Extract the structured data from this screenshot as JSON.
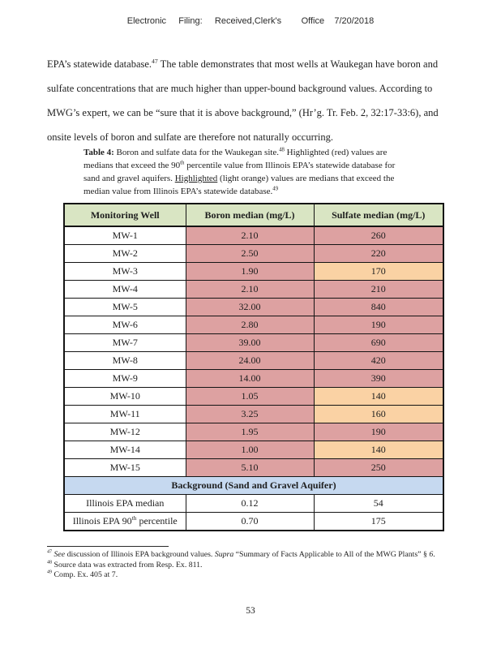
{
  "header": {
    "line": "Electronic     Filing:     Received,Clerk's        Office    7/20/2018"
  },
  "paragraph": {
    "segments": [
      {
        "t": "EPA’s statewide database."
      },
      {
        "t": "47",
        "style": "sup"
      },
      {
        "t": " The table demonstrates that most wells at Waukegan have boron and sulfate concentrations that are much higher than upper-bound background values. According to MWG’s expert, we can be “sure that it is above background,” (Hr’g. Tr. Feb. 2, 32:17-33:6), and onsite levels of boron and sulfate are therefore not naturally occurring."
      }
    ]
  },
  "caption": {
    "segments": [
      {
        "t": "Table 4:",
        "style": "bold"
      },
      {
        "t": " Boron and sulfate data for the Waukegan site."
      },
      {
        "t": "48",
        "style": "sup"
      },
      {
        "t": " Highlighted (red) values are medians that exceed the 90"
      },
      {
        "t": "th",
        "style": "sup"
      },
      {
        "t": " percentile value from Illinois EPA’s statewide database for sand and gravel aquifers. "
      },
      {
        "t": "Highlighted",
        "style": "underline"
      },
      {
        "t": " (light orange) values are medians that exceed the median value from Illinois EPA’s statewide database."
      },
      {
        "t": "49",
        "style": "sup"
      }
    ]
  },
  "table": {
    "columns": [
      "Monitoring Well",
      "Boron median (mg/L)",
      "Sulfate median (mg/L)"
    ],
    "header_bg": "#d9e5c3",
    "section_bg": "#c6d9f0",
    "highlight_colors": {
      "red": "#dda1a1",
      "orange": "#fad2a4",
      "none": "#ffffff"
    },
    "rows": [
      {
        "well": "MW-1",
        "boron": "2.10",
        "boron_hl": "red",
        "sulfate": "260",
        "sulfate_hl": "red"
      },
      {
        "well": "MW-2",
        "boron": "2.50",
        "boron_hl": "red",
        "sulfate": "220",
        "sulfate_hl": "red"
      },
      {
        "well": "MW-3",
        "boron": "1.90",
        "boron_hl": "red",
        "sulfate": "170",
        "sulfate_hl": "orange"
      },
      {
        "well": "MW-4",
        "boron": "2.10",
        "boron_hl": "red",
        "sulfate": "210",
        "sulfate_hl": "red"
      },
      {
        "well": "MW-5",
        "boron": "32.00",
        "boron_hl": "red",
        "sulfate": "840",
        "sulfate_hl": "red"
      },
      {
        "well": "MW-6",
        "boron": "2.80",
        "boron_hl": "red",
        "sulfate": "190",
        "sulfate_hl": "red"
      },
      {
        "well": "MW-7",
        "boron": "39.00",
        "boron_hl": "red",
        "sulfate": "690",
        "sulfate_hl": "red"
      },
      {
        "well": "MW-8",
        "boron": "24.00",
        "boron_hl": "red",
        "sulfate": "420",
        "sulfate_hl": "red"
      },
      {
        "well": "MW-9",
        "boron": "14.00",
        "boron_hl": "red",
        "sulfate": "390",
        "sulfate_hl": "red"
      },
      {
        "well": "MW-10",
        "boron": "1.05",
        "boron_hl": "red",
        "sulfate": "140",
        "sulfate_hl": "orange"
      },
      {
        "well": "MW-11",
        "boron": "3.25",
        "boron_hl": "red",
        "sulfate": "160",
        "sulfate_hl": "orange"
      },
      {
        "well": "MW-12",
        "boron": "1.95",
        "boron_hl": "red",
        "sulfate": "190",
        "sulfate_hl": "red"
      },
      {
        "well": "MW-14",
        "boron": "1.00",
        "boron_hl": "red",
        "sulfate": "140",
        "sulfate_hl": "orange"
      },
      {
        "well": "MW-15",
        "boron": "5.10",
        "boron_hl": "red",
        "sulfate": "250",
        "sulfate_hl": "red"
      }
    ],
    "section_header": "Background (Sand and Gravel Aquifer)",
    "background_rows": [
      {
        "label_segments": [
          {
            "t": "Illinois EPA median"
          }
        ],
        "boron": "0.12",
        "sulfate": "54"
      },
      {
        "label_segments": [
          {
            "t": "Illinois EPA 90"
          },
          {
            "t": "th",
            "style": "sup"
          },
          {
            "t": " percentile"
          }
        ],
        "boron": "0.70",
        "sulfate": "175"
      }
    ]
  },
  "footnotes": [
    {
      "segments": [
        {
          "t": "47",
          "style": "sup"
        },
        {
          "t": " "
        },
        {
          "t": "See",
          "style": "italic"
        },
        {
          "t": " discussion of Illinois EPA background values. "
        },
        {
          "t": "Supra",
          "style": "italic"
        },
        {
          "t": " “Summary of Facts Applicable to All of the MWG Plants” § "
        },
        {
          "t": "6",
          "style": "italic"
        },
        {
          "t": "."
        }
      ]
    },
    {
      "segments": [
        {
          "t": "48",
          "style": "sup"
        },
        {
          "t": " Source data was extracted from Resp. Ex. 811."
        }
      ]
    },
    {
      "segments": [
        {
          "t": "49",
          "style": "sup"
        },
        {
          "t": " Comp. Ex. 405 at 7."
        }
      ]
    }
  ],
  "page_number": "53"
}
